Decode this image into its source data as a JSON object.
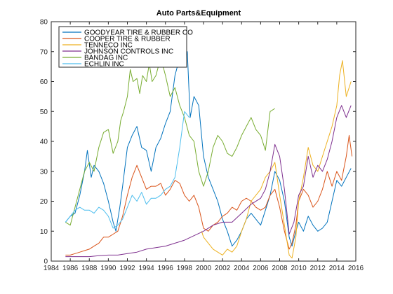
{
  "chart_data": {
    "type": "line",
    "title": "Auto Parts&Equipment",
    "xlabel": "",
    "ylabel": "",
    "xlim": [
      1984,
      2016
    ],
    "ylim": [
      0,
      80
    ],
    "xticks": [
      1984,
      1986,
      1988,
      1990,
      1992,
      1994,
      1996,
      1998,
      2000,
      2002,
      2004,
      2006,
      2008,
      2010,
      2012,
      2014,
      2016
    ],
    "yticks": [
      0,
      10,
      20,
      30,
      40,
      50,
      60,
      70,
      80
    ],
    "grid": false,
    "legend_position": "top-left",
    "series": [
      {
        "name": "GOODYEAR TIRE & RUBBER CO",
        "color": "#0072BD",
        "x": [
          1985.5,
          1986.0,
          1986.5,
          1987.0,
          1987.5,
          1987.8,
          1988.2,
          1988.5,
          1989.0,
          1989.5,
          1990.0,
          1990.5,
          1990.8,
          1991.2,
          1991.5,
          1992.0,
          1992.5,
          1993.0,
          1993.5,
          1994.0,
          1994.5,
          1995.0,
          1995.5,
          1996.0,
          1996.5,
          1997.0,
          1997.5,
          1998.0,
          1998.3,
          1998.6,
          1999.0,
          1999.5,
          2000.0,
          2000.5,
          2001.0,
          2001.5,
          2002.0,
          2002.5,
          2003.0,
          2003.5,
          2004.0,
          2004.5,
          2005.0,
          2005.5,
          2006.0,
          2006.5,
          2007.0,
          2007.5,
          2008.0,
          2008.5,
          2009.0,
          2009.3,
          2009.7,
          2010.0,
          2010.5,
          2011.0,
          2011.5,
          2012.0,
          2012.5,
          2013.0,
          2013.5,
          2014.0,
          2014.5,
          2015.0,
          2015.5
        ],
        "y": [
          13,
          15,
          16,
          22,
          30,
          37,
          28,
          32,
          30,
          26,
          20,
          13,
          10,
          18,
          25,
          38,
          42,
          45,
          38,
          37,
          30,
          38,
          41,
          46,
          50,
          62,
          68,
          65,
          70,
          48,
          55,
          52,
          35,
          28,
          24,
          20,
          14,
          10,
          5,
          7,
          10,
          14,
          16,
          14,
          12,
          17,
          22,
          30,
          27,
          20,
          8,
          5,
          10,
          13,
          10,
          15,
          12,
          10,
          11,
          13,
          20,
          27,
          25,
          28,
          31
        ]
      },
      {
        "name": "COOPER TIRE & RUBBER",
        "color": "#D95319",
        "x": [
          1985.5,
          1986.0,
          1986.5,
          1987.0,
          1987.5,
          1988.0,
          1988.5,
          1989.0,
          1989.5,
          1990.0,
          1990.5,
          1991.0,
          1991.5,
          1992.0,
          1992.5,
          1993.0,
          1993.5,
          1994.0,
          1994.5,
          1995.0,
          1995.5,
          1996.0,
          1996.5,
          1997.0,
          1997.5,
          1998.0,
          1998.5,
          1999.0,
          1999.5,
          2000.0,
          2000.5,
          2001.0,
          2001.5,
          2002.0,
          2002.5,
          2003.0,
          2003.5,
          2004.0,
          2004.5,
          2005.0,
          2005.5,
          2006.0,
          2006.5,
          2007.0,
          2007.5,
          2008.0,
          2008.5,
          2009.0,
          2009.3,
          2009.7,
          2010.0,
          2010.5,
          2011.0,
          2011.5,
          2012.0,
          2012.5,
          2013.0,
          2013.5,
          2014.0,
          2014.5,
          2015.0,
          2015.3,
          2015.6
        ],
        "y": [
          2,
          2,
          2.5,
          3,
          3.5,
          4,
          5,
          6,
          8,
          8,
          9,
          10,
          15,
          22,
          28,
          32,
          28,
          24,
          25,
          25,
          26,
          22,
          24,
          27,
          26,
          22,
          20,
          22,
          18,
          11,
          10,
          12,
          13,
          15,
          16,
          18,
          17,
          20,
          21,
          20,
          18,
          17,
          18,
          22,
          24,
          18,
          10,
          4,
          6,
          12,
          20,
          24,
          22,
          18,
          20,
          24,
          30,
          25,
          30,
          27,
          35,
          42,
          35
        ]
      },
      {
        "name": "TENNECO INC",
        "color": "#EDB120",
        "x": [
          1999.8,
          2000.0,
          2000.5,
          2001.0,
          2001.5,
          2002.0,
          2002.5,
          2003.0,
          2003.5,
          2004.0,
          2004.5,
          2005.0,
          2005.5,
          2006.0,
          2006.5,
          2007.0,
          2007.5,
          2008.0,
          2008.5,
          2009.0,
          2009.3,
          2009.7,
          2010.0,
          2010.5,
          2011.0,
          2011.5,
          2012.0,
          2012.5,
          2013.0,
          2013.5,
          2014.0,
          2014.3,
          2014.6,
          2015.0,
          2015.5
        ],
        "y": [
          10,
          8,
          6,
          4,
          3,
          2,
          4,
          3,
          5,
          10,
          14,
          20,
          22,
          24,
          28,
          30,
          33,
          22,
          12,
          2,
          1,
          8,
          20,
          28,
          38,
          32,
          30,
          35,
          40,
          45,
          52,
          62,
          67,
          55,
          60
        ]
      },
      {
        "name": "JOHNSON CONTROLS INC",
        "color": "#7E2F8E",
        "x": [
          1985.5,
          1986.0,
          1987.0,
          1988.0,
          1989.0,
          1990.0,
          1991.0,
          1992.0,
          1993.0,
          1994.0,
          1995.0,
          1996.0,
          1997.0,
          1998.0,
          1999.0,
          2000.0,
          2001.0,
          2002.0,
          2003.0,
          2004.0,
          2005.0,
          2006.0,
          2006.5,
          2007.0,
          2007.5,
          2008.0,
          2008.5,
          2009.0,
          2009.5,
          2010.0,
          2010.5,
          2011.0,
          2011.5,
          2012.0,
          2012.5,
          2013.0,
          2013.5,
          2014.0,
          2014.5,
          2015.0,
          2015.5
        ],
        "y": [
          1.5,
          1.5,
          1.5,
          1.5,
          1.8,
          2,
          2,
          2.5,
          3,
          4,
          4.5,
          5,
          6,
          7,
          8.5,
          10,
          12,
          13,
          13,
          16,
          19,
          21,
          24,
          30,
          39,
          35,
          24,
          9,
          13,
          22,
          25,
          35,
          28,
          32,
          30,
          34,
          40,
          48,
          52,
          48,
          52
        ]
      },
      {
        "name": "BANDAG INC",
        "color": "#77AC30",
        "x": [
          1985.5,
          1986.0,
          1986.5,
          1987.0,
          1987.5,
          1988.0,
          1988.5,
          1989.0,
          1989.5,
          1990.0,
          1990.5,
          1991.0,
          1991.3,
          1991.6,
          1992.0,
          1992.3,
          1992.6,
          1993.0,
          1993.3,
          1993.6,
          1994.0,
          1994.3,
          1994.6,
          1995.0,
          1995.5,
          1996.0,
          1996.5,
          1997.0,
          1997.5,
          1998.0,
          1998.5,
          1999.0,
          1999.5,
          2000.0,
          2000.5,
          2001.0,
          2001.5,
          2002.0,
          2002.5,
          2003.0,
          2003.5,
          2004.0,
          2004.5,
          2005.0,
          2005.5,
          2006.0,
          2006.5,
          2007.0,
          2007.5
        ],
        "y": [
          13,
          12,
          18,
          24,
          30,
          33,
          30,
          38,
          43,
          44,
          36,
          40,
          47,
          50,
          55,
          64,
          60,
          61,
          56,
          62,
          60,
          66,
          60,
          62,
          68,
          62,
          55,
          58,
          52,
          48,
          42,
          40,
          30,
          25,
          30,
          38,
          42,
          40,
          36,
          35,
          38,
          42,
          45,
          48,
          44,
          42,
          37,
          50,
          51
        ]
      },
      {
        "name": "ECHLIN INC",
        "color": "#4DBEEE",
        "x": [
          1985.5,
          1986.0,
          1986.5,
          1987.0,
          1987.5,
          1988.0,
          1988.5,
          1989.0,
          1989.5,
          1990.0,
          1990.5,
          1991.0,
          1991.5,
          1992.0,
          1992.5,
          1993.0,
          1993.5,
          1994.0,
          1994.5,
          1995.0,
          1995.5,
          1996.0,
          1996.5,
          1997.0,
          1997.5,
          1998.0,
          1998.5
        ],
        "y": [
          13,
          15,
          17,
          18,
          17,
          17,
          16,
          18,
          17,
          15,
          11,
          12,
          14,
          18,
          22,
          20,
          23,
          19,
          21,
          21,
          22,
          24,
          25,
          28,
          38,
          50,
          48
        ]
      }
    ]
  }
}
